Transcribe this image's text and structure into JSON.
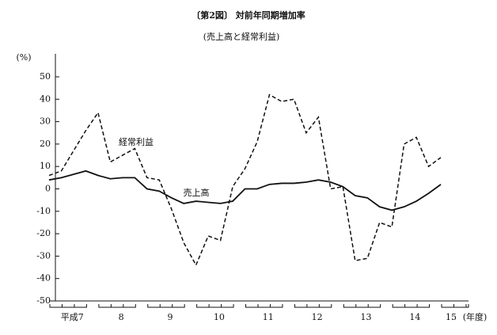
{
  "chart_data": {
    "type": "line",
    "title": "〔第2図〕 対前年同期増加率",
    "subtitle": "(売上高と経常利益)",
    "y_unit": "(%)",
    "x_unit": "(年度)",
    "categories": [
      "平成7",
      null,
      null,
      null,
      "8",
      null,
      null,
      null,
      "9",
      null,
      null,
      null,
      "10",
      null,
      null,
      null,
      "11",
      null,
      null,
      null,
      "12",
      null,
      null,
      null,
      "13",
      null,
      null,
      null,
      "14",
      null,
      null,
      null,
      "15"
    ],
    "series": [
      {
        "name": "経常利益",
        "color": "#111111",
        "dash": true,
        "values": [
          6,
          8,
          17,
          26,
          34,
          12,
          15,
          18,
          5,
          4,
          -9,
          -24,
          -34,
          -21,
          -23,
          1,
          9,
          21,
          42,
          39,
          40,
          25,
          32,
          0,
          1,
          -32,
          -31,
          -15,
          -17,
          20,
          23,
          10,
          14
        ]
      },
      {
        "name": "売上高",
        "color": "#111111",
        "dash": false,
        "values": [
          4,
          5,
          6.5,
          8,
          6,
          4.5,
          5,
          5,
          0,
          -1,
          -4,
          -6.5,
          -5.5,
          -6,
          -6.5,
          -5.5,
          0,
          0,
          2,
          2.5,
          2.5,
          3,
          4,
          3,
          1,
          -3,
          -4,
          -8,
          -9.5,
          -8,
          -5.5,
          -2,
          2
        ]
      }
    ],
    "ylim": [
      -50,
      50
    ],
    "yticks": [
      -50,
      -40,
      -30,
      -20,
      -10,
      0,
      10,
      20,
      30,
      40,
      50
    ],
    "grid": false
  }
}
